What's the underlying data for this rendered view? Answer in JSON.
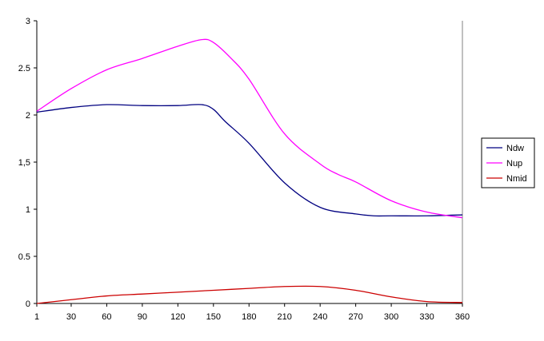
{
  "chart_data": {
    "type": "line",
    "title": "",
    "xlabel": "",
    "ylabel": "",
    "x": [
      1,
      30,
      60,
      90,
      120,
      150,
      180,
      210,
      240,
      270,
      300,
      330,
      360
    ],
    "x_ticks": [
      "1",
      "30",
      "60",
      "90",
      "120",
      "150",
      "180",
      "210",
      "240",
      "270",
      "300",
      "330",
      "360"
    ],
    "y_ticks": [
      "0",
      "0.5",
      "1",
      "1,5",
      "2",
      "2.5",
      "3"
    ],
    "xlim": [
      1,
      360
    ],
    "ylim": [
      0,
      3
    ],
    "grid": false,
    "legend_position": "right",
    "series": [
      {
        "name": "Ndw",
        "color": "#000080",
        "x": [
          1,
          30,
          60,
          90,
          120,
          140,
          150,
          160,
          180,
          210,
          240,
          270,
          285,
          300,
          330,
          360
        ],
        "values": [
          2.03,
          2.08,
          2.11,
          2.1,
          2.1,
          2.11,
          2.06,
          1.93,
          1.7,
          1.28,
          1.02,
          0.95,
          0.93,
          0.93,
          0.93,
          0.94
        ]
      },
      {
        "name": "Nup",
        "color": "#FF00FF",
        "x": [
          1,
          30,
          60,
          90,
          120,
          140,
          150,
          165,
          180,
          210,
          240,
          255,
          270,
          300,
          330,
          360
        ],
        "values": [
          2.04,
          2.28,
          2.48,
          2.6,
          2.73,
          2.8,
          2.77,
          2.6,
          2.38,
          1.8,
          1.48,
          1.37,
          1.29,
          1.09,
          0.97,
          0.91
        ]
      },
      {
        "name": "Nmid",
        "color": "#CC0000",
        "x": [
          1,
          30,
          60,
          90,
          120,
          150,
          180,
          210,
          240,
          270,
          300,
          330,
          360
        ],
        "values": [
          0.0,
          0.04,
          0.08,
          0.1,
          0.12,
          0.14,
          0.16,
          0.18,
          0.18,
          0.14,
          0.07,
          0.02,
          0.01
        ]
      }
    ]
  }
}
